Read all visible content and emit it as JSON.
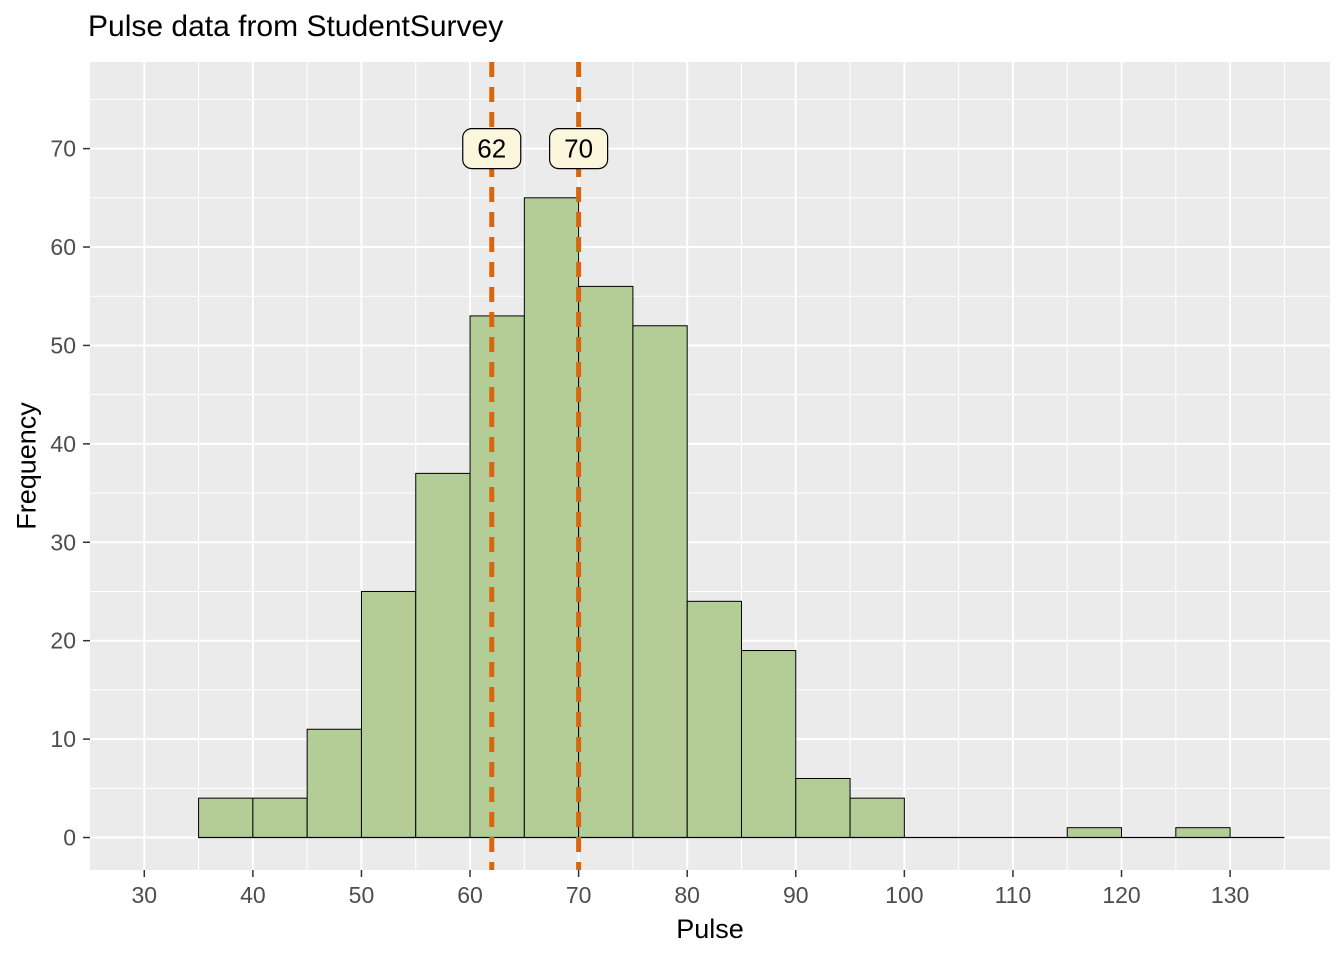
{
  "title": "Pulse data from StudentSurvey",
  "chart_data": {
    "type": "bar",
    "subtype": "histogram",
    "title": "Pulse data from StudentSurvey",
    "xlabel": "Pulse",
    "ylabel": "Frequency",
    "bin_start": 35,
    "bin_width": 5,
    "counts": [
      4,
      4,
      11,
      25,
      37,
      53,
      65,
      56,
      52,
      24,
      19,
      6,
      4,
      0,
      0,
      0,
      1,
      0,
      1,
      0
    ],
    "bin_edges_note": "bins of width 5 from 35 to 135",
    "x_ticks": [
      30,
      40,
      50,
      60,
      70,
      80,
      90,
      100,
      110,
      120,
      130
    ],
    "y_ticks": [
      0,
      10,
      20,
      30,
      40,
      50,
      60,
      70
    ],
    "x_domain": [
      25,
      139.2
    ],
    "y_domain": [
      -3.3,
      78.8
    ],
    "grid": "major and minor, white on gray panel",
    "legend": "none",
    "vlines": [
      {
        "x": 62,
        "label": "62"
      },
      {
        "x": 70,
        "label": "70"
      }
    ],
    "colors": {
      "panel_bg": "#EBEBEB",
      "grid_major": "#FFFFFF",
      "grid_minor": "#FFFFFF",
      "bar_fill": "#B4CD97",
      "bar_stroke": "#000000",
      "vline": "#D9660E",
      "label_box_fill": "#FBF6DC",
      "label_box_stroke": "#000000",
      "tick_text": "#4D4D4D",
      "axis_tick_mark": "#333333",
      "title_text": "#000000"
    }
  }
}
